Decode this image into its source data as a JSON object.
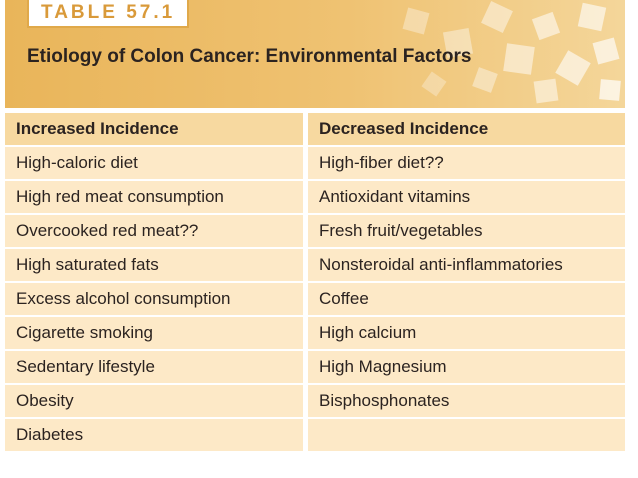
{
  "table_label": "TABLE 57.1",
  "title": "Etiology of Colon Cancer: Environmental Factors",
  "table": {
    "headers": [
      "Increased Incidence",
      "Decreased Incidence"
    ],
    "rows": [
      [
        "High-caloric diet",
        "High-fiber diet??"
      ],
      [
        "High red meat consumption",
        "Antioxidant vitamins"
      ],
      [
        "Overcooked red meat??",
        "Fresh fruit/vegetables"
      ],
      [
        "High saturated fats",
        "Nonsteroidal anti-inflammatories"
      ],
      [
        "Excess alcohol consumption",
        "Coffee"
      ],
      [
        "Cigarette smoking",
        "High calcium"
      ],
      [
        "Sedentary lifestyle",
        "High Magnesium"
      ],
      [
        "Obesity",
        "Bisphosphonates"
      ],
      [
        "Diabetes"
      ]
    ]
  }
}
